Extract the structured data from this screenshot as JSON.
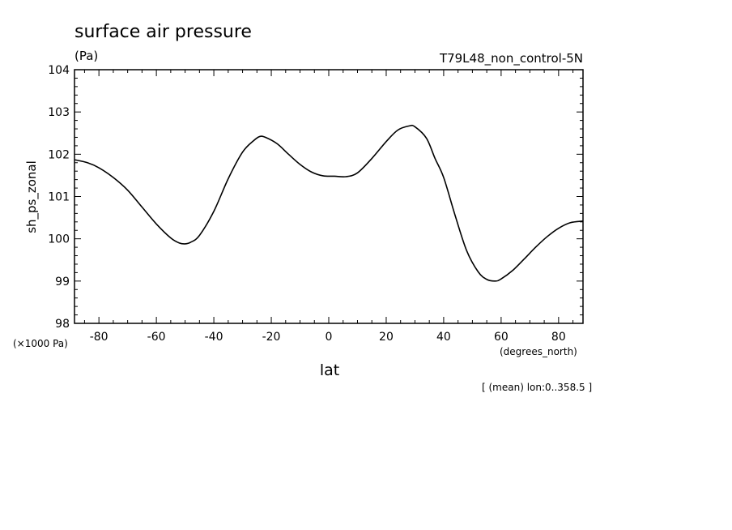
{
  "chart_data": {
    "type": "line",
    "title": "surface air pressure",
    "units": "(Pa)",
    "run_label": "T79L48_non_control-5N",
    "xlabel": "lat",
    "x_unit_label": "(degrees_north)",
    "ylabel": "sh_ps_zonal",
    "y_scale_label": "(×1000 Pa)",
    "footnote": "[ (mean) lon:0..358.5 ]",
    "xlim": [
      -88.5,
      88.5
    ],
    "ylim": [
      98,
      104
    ],
    "x_ticks": [
      -80,
      -60,
      -40,
      -20,
      0,
      20,
      40,
      60,
      80
    ],
    "x_tick_labels": [
      "-80",
      "-60",
      "-40",
      "-20",
      "0",
      "20",
      "40",
      "60",
      "80"
    ],
    "y_ticks": [
      98,
      99,
      100,
      101,
      102,
      103,
      104
    ],
    "y_tick_labels": [
      "98",
      "99",
      "100",
      "101",
      "102",
      "103",
      "104"
    ],
    "grid": false,
    "line_color": "#000000",
    "series": [
      {
        "x": [
          -88.5,
          -84,
          -80,
          -75,
          -70,
          -65,
          -60,
          -55,
          -52,
          -50,
          -48,
          -45,
          -40,
          -35,
          -30,
          -26,
          -24,
          -22,
          -18,
          -14,
          -10,
          -6,
          -2,
          2,
          6,
          10,
          15,
          20,
          24,
          28,
          30,
          34,
          37,
          40,
          44,
          48,
          52,
          55,
          58,
          60,
          64,
          68,
          72,
          76,
          80,
          84,
          88.5
        ],
        "y": [
          101.87,
          101.8,
          101.68,
          101.45,
          101.15,
          100.75,
          100.35,
          100.02,
          99.9,
          99.88,
          99.92,
          100.08,
          100.65,
          101.42,
          102.05,
          102.33,
          102.42,
          102.4,
          102.25,
          102.0,
          101.76,
          101.58,
          101.49,
          101.48,
          101.47,
          101.56,
          101.9,
          102.3,
          102.57,
          102.67,
          102.65,
          102.38,
          101.9,
          101.45,
          100.55,
          99.72,
          99.22,
          99.04,
          99.0,
          99.05,
          99.25,
          99.52,
          99.8,
          100.05,
          100.25,
          100.38,
          100.42
        ]
      }
    ]
  }
}
